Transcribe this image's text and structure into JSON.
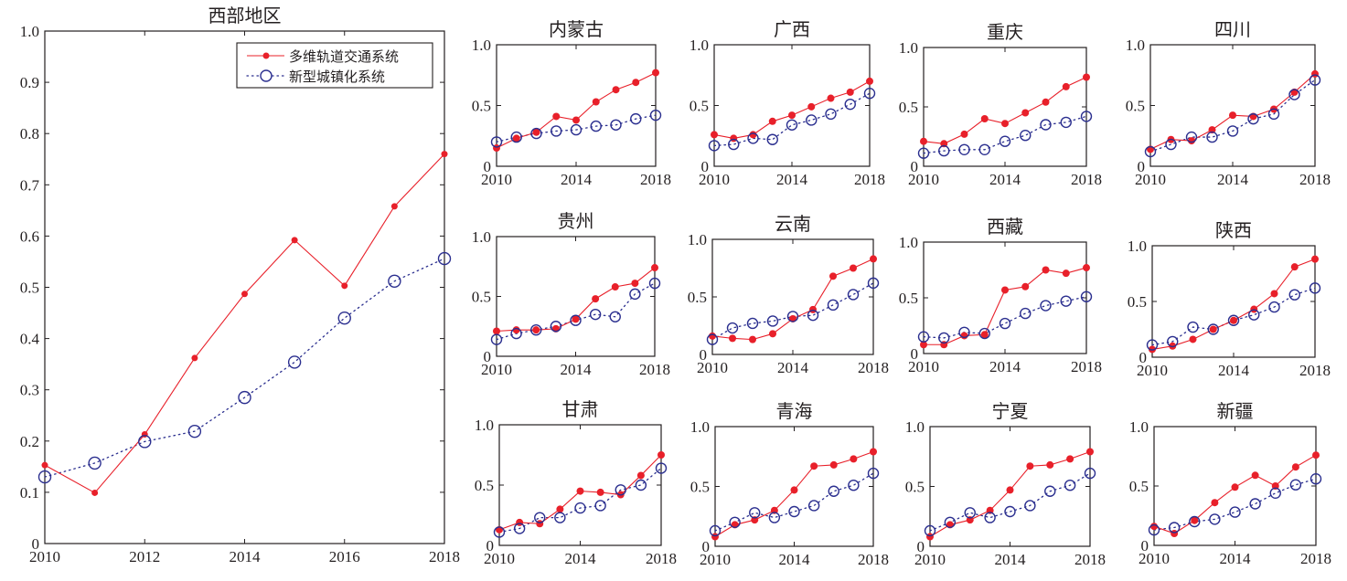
{
  "chart_data": [
    {
      "type": "line",
      "title": "西部地区",
      "xlabel": "",
      "ylabel": "",
      "x": [
        2010,
        2011,
        2012,
        2013,
        2014,
        2015,
        2016,
        2017,
        2018
      ],
      "xlim": [
        2010,
        2018
      ],
      "ylim": [
        0,
        1.0
      ],
      "xticks": [
        "2010",
        "2012",
        "2014",
        "2016",
        "2018"
      ],
      "yticks": [
        "0",
        "0.1",
        "0.2",
        "0.3",
        "0.4",
        "0.5",
        "0.6",
        "0.7",
        "0.8",
        "0.9",
        "1.0"
      ],
      "grid": false,
      "legend": "top-right",
      "series": [
        {
          "name": "多维轨道交通系统",
          "color": "#e8202a",
          "style": "solid-dot",
          "values": [
            0.153,
            0.099,
            0.213,
            0.362,
            0.487,
            0.592,
            0.503,
            0.658,
            0.76
          ]
        },
        {
          "name": "新型城镇化系统",
          "color": "#2b2f8f",
          "style": "dotted-circle",
          "values": [
            0.13,
            0.157,
            0.199,
            0.219,
            0.285,
            0.354,
            0.44,
            0.512,
            0.556
          ]
        }
      ]
    },
    {
      "type": "line",
      "title": "内蒙古",
      "x": [
        2010,
        2011,
        2012,
        2013,
        2014,
        2015,
        2016,
        2017,
        2018
      ],
      "xlim": [
        2010,
        2018
      ],
      "ylim": [
        0,
        1.0
      ],
      "xticks": [
        "2010",
        "2014",
        "2018"
      ],
      "yticks": [
        "0",
        "0.5",
        "1.0"
      ],
      "series": [
        {
          "name": "多维轨道交通系统",
          "values": [
            0.15,
            0.23,
            0.28,
            0.41,
            0.38,
            0.53,
            0.63,
            0.69,
            0.77
          ]
        },
        {
          "name": "新型城镇化系统",
          "values": [
            0.2,
            0.24,
            0.27,
            0.29,
            0.3,
            0.33,
            0.34,
            0.39,
            0.42
          ]
        }
      ]
    },
    {
      "type": "line",
      "title": "广西",
      "x": [
        2010,
        2011,
        2012,
        2013,
        2014,
        2015,
        2016,
        2017,
        2018
      ],
      "xlim": [
        2010,
        2018
      ],
      "ylim": [
        0,
        1.0
      ],
      "xticks": [
        "2010",
        "2014",
        "2018"
      ],
      "yticks": [
        "0",
        "0.5",
        "1.0"
      ],
      "series": [
        {
          "name": "多维轨道交通系统",
          "values": [
            0.26,
            0.23,
            0.26,
            0.37,
            0.42,
            0.49,
            0.56,
            0.61,
            0.7
          ]
        },
        {
          "name": "新型城镇化系统",
          "values": [
            0.17,
            0.18,
            0.23,
            0.22,
            0.34,
            0.38,
            0.43,
            0.51,
            0.6
          ]
        }
      ]
    },
    {
      "type": "line",
      "title": "重庆",
      "x": [
        2010,
        2011,
        2012,
        2013,
        2014,
        2015,
        2016,
        2017,
        2018
      ],
      "xlim": [
        2010,
        2018
      ],
      "ylim": [
        0,
        1.0
      ],
      "xticks": [
        "2010",
        "2014",
        "2018"
      ],
      "yticks": [
        "0",
        "0.5",
        "1.0"
      ],
      "series": [
        {
          "name": "多维轨道交通系统",
          "values": [
            0.21,
            0.19,
            0.27,
            0.4,
            0.36,
            0.45,
            0.54,
            0.67,
            0.75
          ]
        },
        {
          "name": "新型城镇化系统",
          "values": [
            0.11,
            0.13,
            0.14,
            0.14,
            0.21,
            0.26,
            0.35,
            0.37,
            0.42
          ]
        }
      ]
    },
    {
      "type": "line",
      "title": "四川",
      "x": [
        2010,
        2011,
        2012,
        2013,
        2014,
        2015,
        2016,
        2017,
        2018
      ],
      "xlim": [
        2010,
        2018
      ],
      "ylim": [
        0,
        1.0
      ],
      "xticks": [
        "2010",
        "2014",
        "2018"
      ],
      "yticks": [
        "0",
        "0.5",
        "1.0"
      ],
      "series": [
        {
          "name": "多维轨道交通系统",
          "values": [
            0.14,
            0.22,
            0.21,
            0.3,
            0.42,
            0.41,
            0.47,
            0.61,
            0.76
          ]
        },
        {
          "name": "新型城镇化系统",
          "values": [
            0.12,
            0.18,
            0.24,
            0.24,
            0.29,
            0.39,
            0.43,
            0.59,
            0.71
          ]
        }
      ]
    },
    {
      "type": "line",
      "title": "贵州",
      "x": [
        2010,
        2011,
        2012,
        2013,
        2014,
        2015,
        2016,
        2017,
        2018
      ],
      "xlim": [
        2010,
        2018
      ],
      "ylim": [
        0,
        1.0
      ],
      "xticks": [
        "2010",
        "2014",
        "2018"
      ],
      "yticks": [
        "0",
        "0.5",
        "1.0"
      ],
      "series": [
        {
          "name": "多维轨道交通系统",
          "values": [
            0.21,
            0.22,
            0.22,
            0.23,
            0.31,
            0.48,
            0.58,
            0.61,
            0.74
          ]
        },
        {
          "name": "新型城镇化系统",
          "values": [
            0.14,
            0.19,
            0.22,
            0.25,
            0.3,
            0.35,
            0.33,
            0.52,
            0.61
          ]
        }
      ]
    },
    {
      "type": "line",
      "title": "云南",
      "x": [
        2010,
        2011,
        2012,
        2013,
        2014,
        2015,
        2016,
        2017,
        2018
      ],
      "xlim": [
        2010,
        2018
      ],
      "ylim": [
        0,
        1.0
      ],
      "xticks": [
        "2010",
        "2014",
        "2018"
      ],
      "yticks": [
        "0",
        "0.5",
        "1.0"
      ],
      "series": [
        {
          "name": "多维轨道交通系统",
          "values": [
            0.16,
            0.14,
            0.13,
            0.18,
            0.31,
            0.39,
            0.68,
            0.75,
            0.83
          ]
        },
        {
          "name": "新型城镇化系统",
          "values": [
            0.13,
            0.23,
            0.27,
            0.29,
            0.33,
            0.34,
            0.43,
            0.52,
            0.62
          ]
        }
      ]
    },
    {
      "type": "line",
      "title": "西藏",
      "x": [
        2010,
        2011,
        2012,
        2013,
        2014,
        2015,
        2016,
        2017,
        2018
      ],
      "xlim": [
        2010,
        2018
      ],
      "ylim": [
        0,
        1.0
      ],
      "xticks": [
        "2010",
        "2014",
        "2018"
      ],
      "yticks": [
        "0",
        "0.5",
        "1.0"
      ],
      "series": [
        {
          "name": "多维轨道交通系统",
          "values": [
            0.08,
            0.08,
            0.16,
            0.17,
            0.57,
            0.6,
            0.75,
            0.72,
            0.77
          ]
        },
        {
          "name": "新型城镇化系统",
          "values": [
            0.15,
            0.14,
            0.19,
            0.18,
            0.27,
            0.36,
            0.43,
            0.47,
            0.51
          ]
        }
      ]
    },
    {
      "type": "line",
      "title": "陕西",
      "x": [
        2010,
        2011,
        2012,
        2013,
        2014,
        2015,
        2016,
        2017,
        2018
      ],
      "xlim": [
        2010,
        2018
      ],
      "ylim": [
        0,
        1.0
      ],
      "xticks": [
        "2010",
        "2014",
        "2018"
      ],
      "yticks": [
        "0",
        "0.5",
        "1.0"
      ],
      "series": [
        {
          "name": "多维轨道交通系统",
          "values": [
            0.07,
            0.1,
            0.16,
            0.25,
            0.33,
            0.43,
            0.57,
            0.81,
            0.88
          ]
        },
        {
          "name": "新型城镇化系统",
          "values": [
            0.11,
            0.14,
            0.27,
            0.25,
            0.33,
            0.38,
            0.45,
            0.56,
            0.62
          ]
        }
      ]
    },
    {
      "type": "line",
      "title": "甘肃",
      "x": [
        2010,
        2011,
        2012,
        2013,
        2014,
        2015,
        2016,
        2017,
        2018
      ],
      "xlim": [
        2010,
        2018
      ],
      "ylim": [
        0,
        1.0
      ],
      "xticks": [
        "2010",
        "2014",
        "2018"
      ],
      "yticks": [
        "0",
        "0.5",
        "1.0"
      ],
      "series": [
        {
          "name": "多维轨道交通系统",
          "values": [
            0.13,
            0.19,
            0.18,
            0.3,
            0.45,
            0.44,
            0.42,
            0.58,
            0.75
          ]
        },
        {
          "name": "新型城镇化系统",
          "values": [
            0.11,
            0.14,
            0.23,
            0.23,
            0.31,
            0.33,
            0.46,
            0.5,
            0.64
          ]
        }
      ]
    },
    {
      "type": "line",
      "title": "青海",
      "x": [
        2010,
        2011,
        2012,
        2013,
        2014,
        2015,
        2016,
        2017,
        2018
      ],
      "xlim": [
        2010,
        2018
      ],
      "ylim": [
        0,
        1.0
      ],
      "xticks": [
        "2010",
        "2014",
        "2018"
      ],
      "yticks": [
        "0",
        "0.5",
        "1.0"
      ],
      "series": [
        {
          "name": "多维轨道交通系统",
          "values": [
            0.08,
            0.18,
            0.22,
            0.3,
            0.47,
            0.67,
            0.68,
            0.73,
            0.79
          ]
        },
        {
          "name": "新型城镇化系统",
          "values": [
            0.13,
            0.2,
            0.28,
            0.24,
            0.29,
            0.34,
            0.46,
            0.51,
            0.61
          ]
        }
      ]
    },
    {
      "type": "line",
      "title": "宁夏",
      "x": [
        2010,
        2011,
        2012,
        2013,
        2014,
        2015,
        2016,
        2017,
        2018
      ],
      "xlim": [
        2010,
        2018
      ],
      "ylim": [
        0,
        1.0
      ],
      "xticks": [
        "2010",
        "2014",
        "2018"
      ],
      "yticks": [
        "0",
        "0.5",
        "1.0"
      ],
      "series": [
        {
          "name": "多维轨道交通系统",
          "values": [
            0.08,
            0.18,
            0.22,
            0.3,
            0.47,
            0.67,
            0.68,
            0.73,
            0.79
          ]
        },
        {
          "name": "新型城镇化系统",
          "values": [
            0.13,
            0.2,
            0.28,
            0.24,
            0.29,
            0.34,
            0.46,
            0.51,
            0.61
          ]
        }
      ]
    },
    {
      "type": "line",
      "title": "新疆",
      "x": [
        2010,
        2011,
        2012,
        2013,
        2014,
        2015,
        2016,
        2017,
        2018
      ],
      "xlim": [
        2010,
        2018
      ],
      "ylim": [
        0,
        1.0
      ],
      "xticks": [
        "2010",
        "2014",
        "2018"
      ],
      "yticks": [
        "0",
        "0.5",
        "1.0"
      ],
      "series": [
        {
          "name": "多维轨道交通系统",
          "values": [
            0.16,
            0.1,
            0.21,
            0.36,
            0.49,
            0.59,
            0.5,
            0.66,
            0.76
          ]
        },
        {
          "name": "新型城镇化系统",
          "values": [
            0.13,
            0.15,
            0.2,
            0.22,
            0.28,
            0.35,
            0.44,
            0.51,
            0.56
          ]
        }
      ]
    }
  ],
  "colors": {
    "series1": "#e8202a",
    "series2": "#2b2f8f",
    "axis": "#231f20"
  },
  "legend": {
    "items": [
      "多维轨道交通系统",
      "新型城镇化系统"
    ]
  }
}
